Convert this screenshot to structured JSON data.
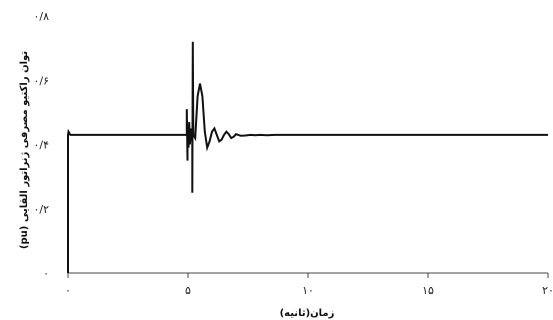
{
  "chart_data": {
    "type": "line",
    "title": "",
    "xlabel": "زمان(ثانیه)",
    "ylabel": "توان راکتیو مصرفی ژنراتور القایی (pu)",
    "xlim": [
      0,
      20
    ],
    "ylim": [
      0,
      0.8
    ],
    "x_ticks": [
      0,
      5,
      10,
      15,
      20
    ],
    "x_tick_labels": [
      "۰",
      "۵",
      "۱۰",
      "۱۵",
      "۲۰"
    ],
    "y_ticks": [
      0,
      0.2,
      0.4,
      0.6,
      0.8
    ],
    "y_tick_labels": [
      "۰",
      "۰/۲",
      "۰/۴",
      "۰/۶",
      "۰/۸"
    ],
    "grid": false,
    "legend": "none",
    "line_color": "#111111",
    "series": [
      {
        "x": [
          0,
          0,
          0.02,
          0.1,
          4.95,
          4.95,
          4.98,
          4.98,
          5.02,
          5.05,
          5.08,
          5.12,
          5.15,
          5.18,
          5.18,
          5.2,
          5.22,
          5.3,
          5.4,
          5.5,
          5.6,
          5.7,
          5.8,
          5.9,
          6.0,
          6.1,
          6.2,
          6.3,
          6.4,
          6.5,
          6.6,
          6.7,
          6.8,
          6.9,
          7.0,
          7.2,
          7.4,
          7.6,
          7.8,
          8.0,
          8.3,
          8.6,
          9,
          10,
          15,
          20
        ],
        "y": [
          0,
          0.43,
          0.44,
          0.43,
          0.43,
          0.51,
          0.35,
          0.46,
          0.39,
          0.47,
          0.4,
          0.45,
          0.41,
          0.44,
          0.25,
          0.72,
          0.43,
          0.42,
          0.55,
          0.59,
          0.55,
          0.44,
          0.39,
          0.41,
          0.44,
          0.45,
          0.43,
          0.41,
          0.415,
          0.43,
          0.44,
          0.432,
          0.42,
          0.424,
          0.432,
          0.427,
          0.428,
          0.43,
          0.429,
          0.43,
          0.429,
          0.43,
          0.43,
          0.43,
          0.43,
          0.43
        ]
      }
    ]
  }
}
